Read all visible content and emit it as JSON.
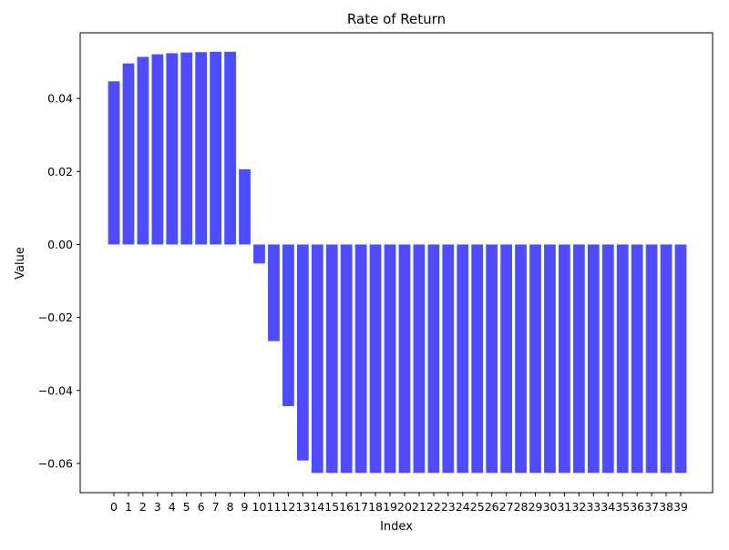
{
  "chart_data": {
    "type": "bar",
    "title": "Rate of Return",
    "xlabel": "Index",
    "ylabel": "Value",
    "categories": [
      "0",
      "1",
      "2",
      "3",
      "4",
      "5",
      "6",
      "7",
      "8",
      "9",
      "10",
      "11",
      "12",
      "13",
      "14",
      "15",
      "16",
      "17",
      "18",
      "19",
      "20",
      "21",
      "22",
      "23",
      "24",
      "25",
      "26",
      "27",
      "28",
      "29",
      "30",
      "31",
      "32",
      "33",
      "34",
      "35",
      "36",
      "37",
      "38",
      "39"
    ],
    "values": [
      0.0447,
      0.0496,
      0.0514,
      0.0521,
      0.0524,
      0.0526,
      0.0527,
      0.0528,
      0.0528,
      0.0206,
      -0.0052,
      -0.0265,
      -0.0443,
      -0.0592,
      -0.0626,
      -0.0626,
      -0.0626,
      -0.0626,
      -0.0626,
      -0.0626,
      -0.0626,
      -0.0626,
      -0.0626,
      -0.0626,
      -0.0626,
      -0.0626,
      -0.0626,
      -0.0626,
      -0.0626,
      -0.0626,
      -0.0626,
      -0.0626,
      -0.0626,
      -0.0626,
      -0.0626,
      -0.0626,
      -0.0626,
      -0.0626,
      -0.0626,
      -0.0626
    ],
    "ylim": [
      -0.068,
      0.058
    ],
    "yticks": [
      -0.06,
      -0.04,
      -0.02,
      0.0,
      0.02,
      0.04
    ],
    "ytick_labels": [
      "−0.06",
      "−0.04",
      "−0.02",
      "0.00",
      "0.02",
      "0.04"
    ],
    "bar_color": "#4d4dff",
    "grid": false,
    "legend": "none"
  }
}
